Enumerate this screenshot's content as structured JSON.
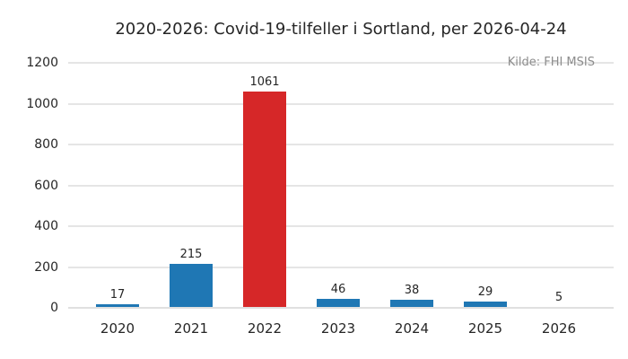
{
  "chart_data": {
    "type": "bar",
    "title": "2020-2026: Covid-19-tilfeller i Sortland, per 2026-04-24",
    "annotation": "Kilde: FHI MSIS",
    "categories": [
      "2020",
      "2021",
      "2022",
      "2023",
      "2024",
      "2025",
      "2026"
    ],
    "values": [
      17,
      215,
      1061,
      46,
      38,
      29,
      5
    ],
    "bar_colors": [
      "#1f77b4",
      "#1f77b4",
      "#d62728",
      "#1f77b4",
      "#1f77b4",
      "#1f77b4",
      "#1f77b4"
    ],
    "highlighted_category": "2022",
    "xlabel": "",
    "ylabel": "",
    "ylim": [
      0,
      1200
    ],
    "ytick_step": 200,
    "yticks": [
      0,
      200,
      400,
      600,
      800,
      1000,
      1200
    ],
    "grid": true,
    "legend": null,
    "value_labels_shown": true,
    "colors": {
      "bar_default": "#1f77b4",
      "bar_highlight": "#d62728",
      "gridline": "#e5e5e5",
      "gridline_baseline": "#e0e0e0",
      "axis_text": "#262626",
      "title_text": "#262626",
      "annotation_text": "#8c8c8c",
      "background": "#ffffff"
    }
  }
}
